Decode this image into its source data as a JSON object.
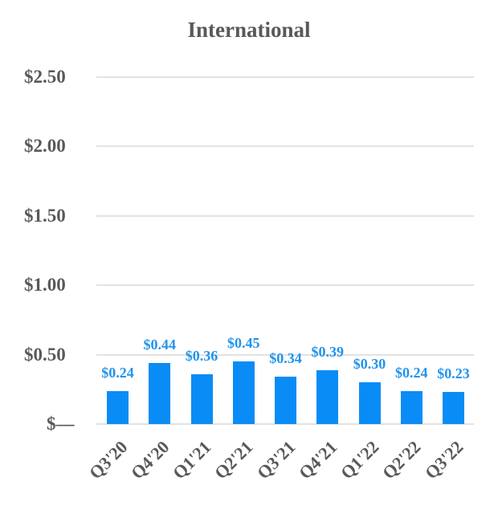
{
  "chart_data": {
    "type": "bar",
    "title": "International",
    "xlabel": "",
    "ylabel": "",
    "categories": [
      "Q3'20",
      "Q4'20",
      "Q1'21",
      "Q2'21",
      "Q3'21",
      "Q4'21",
      "Q1'22",
      "Q2'22",
      "Q3'22"
    ],
    "values": [
      0.24,
      0.44,
      0.36,
      0.45,
      0.34,
      0.39,
      0.3,
      0.24,
      0.23
    ],
    "data_labels": [
      "$0.24",
      "$0.44",
      "$0.36",
      "$0.45",
      "$0.34",
      "$0.39",
      "$0.30",
      "$0.24",
      "$0.23"
    ],
    "ylim": [
      0,
      2.5
    ],
    "yticks": [
      0,
      0.5,
      1.0,
      1.5,
      2.0,
      2.5
    ],
    "ytick_labels": [
      "$—",
      "$0.50",
      "$1.00",
      "$1.50",
      "$2.00",
      "$2.50"
    ],
    "grid": true,
    "legend": null,
    "bar_color": "#0a8cf6",
    "label_color": "#2194ec"
  }
}
